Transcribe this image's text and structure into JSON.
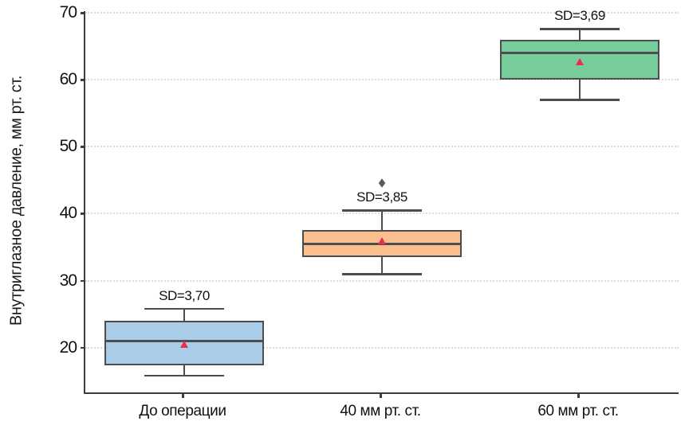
{
  "chart_data": {
    "type": "boxplot",
    "title": "",
    "xlabel": "",
    "ylabel": "Внутриглазное давление, мм рт. ст.",
    "ylim": [
      13.3,
      70.25
    ],
    "yticks": [
      20,
      30,
      40,
      50,
      60,
      70
    ],
    "grid": "horizontal-dotted",
    "legend": "none",
    "categories": [
      "До операции",
      "40 мм рт. ст.",
      "60 мм рт. ст."
    ],
    "series": [
      {
        "category": "До операции",
        "fill_color": "#a9cde9",
        "whisker_low": 15.8,
        "q1": 17.3,
        "median": 21.0,
        "q3": 24.0,
        "whisker_high": 25.8,
        "mean": 20.5,
        "sd_label": "SD=3,70",
        "outliers": []
      },
      {
        "category": "40 мм рт. ст.",
        "fill_color": "#fbbe8d",
        "whisker_low": 31.0,
        "q1": 33.5,
        "median": 35.5,
        "q3": 37.5,
        "whisker_high": 40.5,
        "mean": 36.0,
        "sd_label": "SD=3,85",
        "outliers": [
          44.5
        ]
      },
      {
        "category": "60 мм рт. ст.",
        "fill_color": "#76cd9b",
        "whisker_low": 57.0,
        "q1": 60.0,
        "median": 64.0,
        "q3": 66.0,
        "whisker_high": 67.6,
        "mean": 62.7,
        "sd_label": "SD=3,69",
        "outliers": []
      }
    ],
    "colors": {
      "box_border": "#4d4d4d",
      "median_line": "#4d4d4d",
      "mean_marker": "#ed2b4c",
      "outlier_marker": "#5a5a5a",
      "grid_line": "#dcdcdc",
      "axis_spine": "#3c3c3c",
      "text": "#111111",
      "background": "#ffffff"
    },
    "markers": {
      "mean_shape": "triangle-up",
      "outlier_shape": "diamond"
    }
  }
}
